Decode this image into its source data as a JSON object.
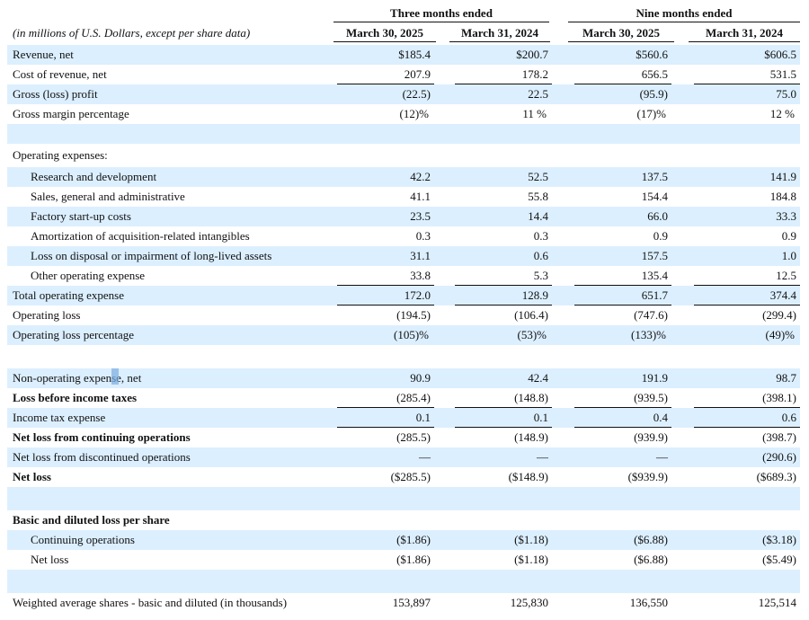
{
  "header": {
    "group_three": "Three months ended",
    "group_nine": "Nine months ended",
    "caption": "(in millions of U.S. Dollars, except per share data)",
    "columns": [
      "March 30, 2025",
      "March 31, 2024",
      "March 30, 2025",
      "March 31, 2024"
    ]
  },
  "rows": [
    {
      "label": "Revenue, net",
      "v": [
        "$185.4",
        "$200.7",
        "$560.6",
        "$606.5"
      ]
    },
    {
      "label": "Cost of revenue, net",
      "v": [
        "207.9",
        "178.2",
        "656.5",
        "531.5"
      ]
    },
    {
      "label": "Gross (loss) profit",
      "v": [
        "(22.5)",
        "22.5",
        "(95.9)",
        "75.0"
      ]
    },
    {
      "label": "Gross margin percentage",
      "v": [
        "(12)%",
        "11 %",
        "(17)%",
        "12 %"
      ]
    },
    {
      "label": "",
      "v": [
        "",
        "",
        "",
        ""
      ]
    },
    {
      "label": "Operating expenses:",
      "v": [
        "",
        "",
        "",
        ""
      ]
    },
    {
      "label": "Research and development",
      "v": [
        "42.2",
        "52.5",
        "137.5",
        "141.9"
      ]
    },
    {
      "label": "Sales, general and administrative",
      "v": [
        "41.1",
        "55.8",
        "154.4",
        "184.8"
      ]
    },
    {
      "label": "Factory start-up costs",
      "v": [
        "23.5",
        "14.4",
        "66.0",
        "33.3"
      ]
    },
    {
      "label": "Amortization of acquisition-related intangibles",
      "v": [
        "0.3",
        "0.3",
        "0.9",
        "0.9"
      ]
    },
    {
      "label": "Loss on disposal or impairment of long-lived assets",
      "v": [
        "31.1",
        "0.6",
        "157.5",
        "1.0"
      ]
    },
    {
      "label": "Other operating expense",
      "v": [
        "33.8",
        "5.3",
        "135.4",
        "12.5"
      ]
    },
    {
      "label": "Total operating expense",
      "v": [
        "172.0",
        "128.9",
        "651.7",
        "374.4"
      ]
    },
    {
      "label": "Operating loss",
      "v": [
        "(194.5)",
        "(106.4)",
        "(747.6)",
        "(299.4)"
      ]
    },
    {
      "label": "Operating loss percentage",
      "v": [
        "(105)%",
        "(53)%",
        "(133)%",
        "(49)%"
      ]
    },
    {
      "label": "",
      "v": [
        "",
        "",
        "",
        ""
      ]
    },
    {
      "label": "Non-operating expense, net",
      "v": [
        "90.9",
        "42.4",
        "191.9",
        "98.7"
      ]
    },
    {
      "label": "Loss before income taxes",
      "v": [
        "(285.4)",
        "(148.8)",
        "(939.5)",
        "(398.1)"
      ]
    },
    {
      "label": "Income tax expense",
      "v": [
        "0.1",
        "0.1",
        "0.4",
        "0.6"
      ]
    },
    {
      "label": "Net loss from continuing operations",
      "v": [
        "(285.5)",
        "(148.9)",
        "(939.9)",
        "(398.7)"
      ]
    },
    {
      "label": "Net loss from discontinued operations",
      "v": [
        "—",
        "—",
        "—",
        "(290.6)"
      ]
    },
    {
      "label": "Net loss",
      "v": [
        "($285.5)",
        "($148.9)",
        "($939.9)",
        "($689.3)"
      ]
    },
    {
      "label": "",
      "v": [
        "",
        "",
        "",
        ""
      ]
    },
    {
      "label": "",
      "v": [
        "",
        "",
        "",
        ""
      ]
    },
    {
      "label": "Basic and diluted loss per share",
      "v": [
        "",
        "",
        "",
        ""
      ]
    },
    {
      "label": "Continuing operations",
      "v": [
        "($1.86)",
        "($1.18)",
        "($6.88)",
        "($3.18)"
      ]
    },
    {
      "label": "Net loss",
      "v": [
        "($1.86)",
        "($1.18)",
        "($6.88)",
        "($5.49)"
      ]
    },
    {
      "label": "",
      "v": [
        "",
        "",
        "",
        ""
      ]
    },
    {
      "label": "Weighted average shares - basic and diluted (in thousands)",
      "v": [
        "153,897",
        "125,830",
        "136,550",
        "125,514"
      ]
    }
  ]
}
